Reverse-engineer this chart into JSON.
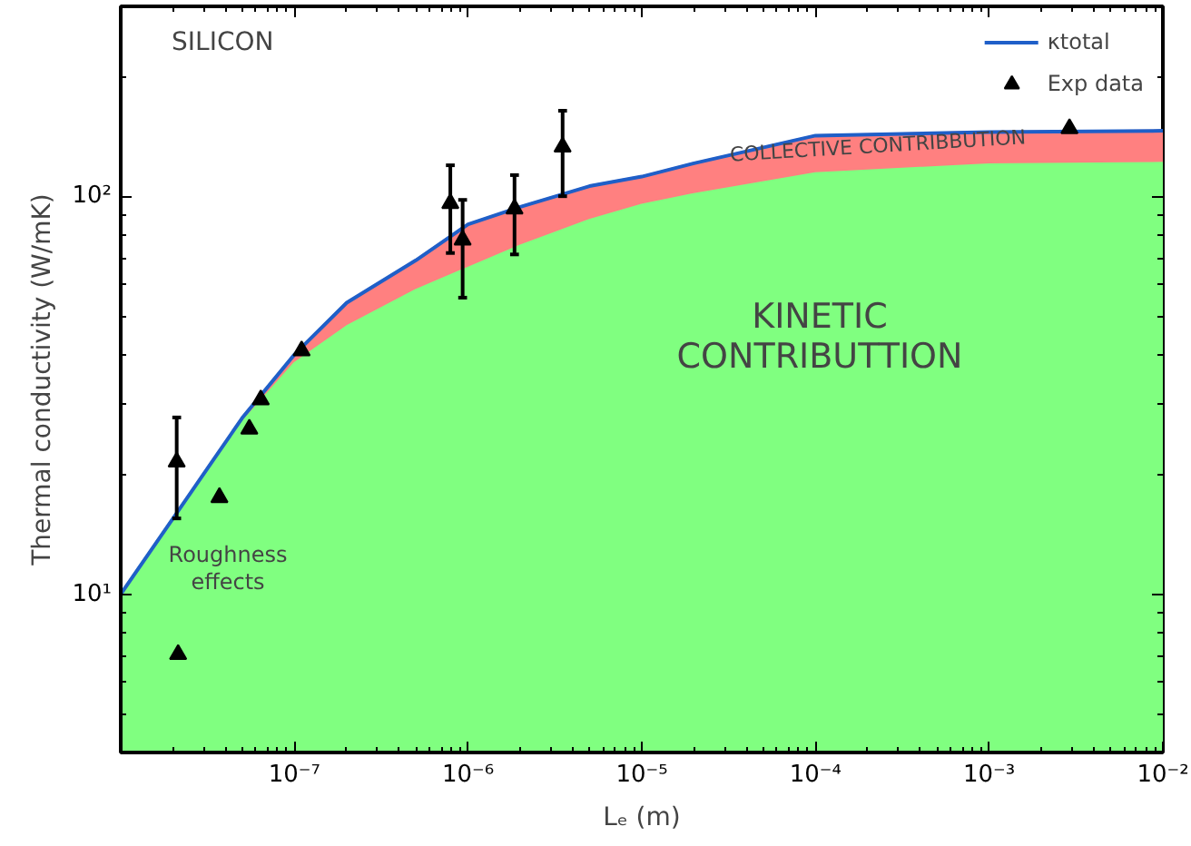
{
  "chart_data": {
    "type": "area",
    "xlabel": "Lₑ (m)",
    "ylabel": "Thermal conductivity (W/mK)",
    "log": "xy",
    "xlim": [
      1e-08,
      0.01
    ],
    "ylim": [
      4,
      300
    ],
    "xticks": [
      {
        "value": 1e-07,
        "label": "10⁻⁷"
      },
      {
        "value": 1e-06,
        "label": "10⁻⁶"
      },
      {
        "value": 1e-05,
        "label": "10⁻⁵"
      },
      {
        "value": 0.0001,
        "label": "10⁻⁴"
      },
      {
        "value": 0.001,
        "label": "10⁻³"
      },
      {
        "value": 0.01,
        "label": "10⁻²"
      }
    ],
    "yticks": [
      {
        "value": 10,
        "label": "10¹"
      },
      {
        "value": 100,
        "label": "10²"
      }
    ],
    "grid": false,
    "legend": "top right",
    "annotations": [
      "SILICON",
      "Roughness\neffects",
      "KINETIC\nCONTRIBUTTION",
      "COLLECTIVE CONTRIBBUTION"
    ],
    "series": [
      {
        "color": "#ff8080",
        "x": [
          1e-08,
          2e-08,
          5e-08,
          1e-07,
          2e-07,
          5e-07,
          1e-06,
          2e-06,
          5e-06,
          1e-05,
          2e-05,
          0.0001,
          0.001,
          0.01
        ],
        "values": [
          10,
          15.5,
          27.7,
          40,
          54,
          69,
          85,
          94,
          106,
          112,
          121,
          142,
          145,
          146
        ]
      },
      {
        "color": "#80ff80",
        "x": [
          1e-08,
          2e-08,
          5e-08,
          1e-07,
          2e-07,
          5e-07,
          1e-06,
          2e-06,
          5e-06,
          1e-05,
          2e-05,
          0.0001,
          0.001,
          0.01
        ],
        "values": [
          10,
          15.5,
          27,
          38,
          47,
          58,
          66,
          75,
          87,
          95,
          101,
          114,
          120,
          121
        ]
      },
      {
        "type": "line",
        "name": "κtotal",
        "color": "#1f5fc8",
        "x": [
          1e-08,
          2e-08,
          5e-08,
          1e-07,
          2e-07,
          5e-07,
          1e-06,
          2e-06,
          5e-06,
          1e-05,
          2e-05,
          0.0001,
          0.001,
          0.01
        ],
        "values": [
          10,
          15.5,
          27.7,
          40,
          54,
          69,
          85,
          94,
          106,
          112,
          121,
          142,
          145,
          146
        ]
      },
      {
        "type": "scatter",
        "name": "Exp data",
        "color": "#000000",
        "marker": "triangle",
        "x": [
          2.1e-08,
          2.14e-08,
          3.7e-08,
          5.5e-08,
          6.4e-08,
          1.1e-07,
          7.9e-07,
          9.3e-07,
          1.85e-06,
          3.5e-06,
          0.0029
        ],
        "values": [
          21.5,
          7.06,
          17.5,
          26,
          30.8,
          40.9,
          96,
          77.7,
          93,
          133,
          148
        ],
        "errors": [
          [
            15.5,
            27.8
          ],
          null,
          null,
          null,
          null,
          null,
          [
            72,
            119.6
          ],
          [
            55.6,
            97.9
          ],
          [
            71.4,
            113
          ],
          [
            100,
            164
          ],
          null
        ]
      }
    ]
  }
}
